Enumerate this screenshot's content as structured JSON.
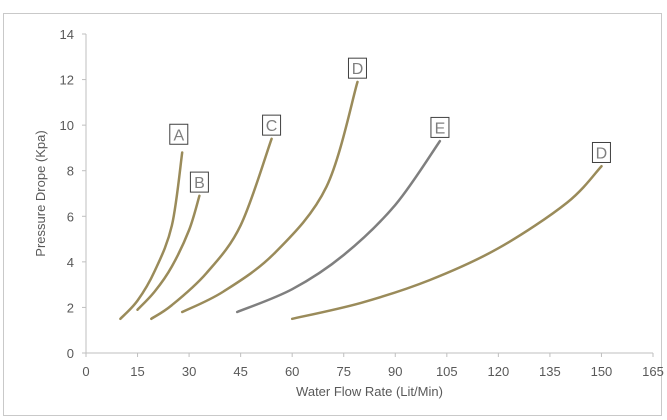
{
  "chart_data": {
    "type": "line",
    "title": "",
    "xlabel": "Water Flow Rate (Lit/Min)",
    "ylabel": "Pressure Drope (Kpa)",
    "xlim": [
      0,
      165
    ],
    "ylim": [
      0,
      14
    ],
    "x_ticks": [
      "0",
      "15",
      "30",
      "45",
      "60",
      "75",
      "90",
      "105",
      "120",
      "135",
      "150",
      "165"
    ],
    "y_ticks": [
      "0",
      "2",
      "4",
      "6",
      "8",
      "10",
      "12",
      "14"
    ],
    "grid": false,
    "legend": "none",
    "series": [
      {
        "name": "A",
        "color": "#9a8b5a",
        "points": [
          [
            10,
            1.5
          ],
          [
            15,
            2.3
          ],
          [
            20,
            3.6
          ],
          [
            25,
            5.6
          ],
          [
            28,
            8.8
          ]
        ],
        "label_at": [
          27,
          9.6
        ]
      },
      {
        "name": "B",
        "color": "#9a8b5a",
        "points": [
          [
            15,
            1.9
          ],
          [
            20,
            2.7
          ],
          [
            25,
            3.8
          ],
          [
            30,
            5.4
          ],
          [
            33,
            6.9
          ]
        ],
        "label_at": [
          33,
          7.5
        ]
      },
      {
        "name": "C",
        "color": "#9a8b5a",
        "points": [
          [
            19,
            1.5
          ],
          [
            25,
            2.1
          ],
          [
            35,
            3.5
          ],
          [
            45,
            5.6
          ],
          [
            54,
            9.4
          ]
        ],
        "label_at": [
          54,
          10.0
        ]
      },
      {
        "name": "D",
        "color": "#9a8b5a",
        "points": [
          [
            28,
            1.8
          ],
          [
            40,
            2.7
          ],
          [
            55,
            4.4
          ],
          [
            70,
            7.3
          ],
          [
            79,
            11.9
          ]
        ],
        "label_at": [
          79,
          12.5
        ]
      },
      {
        "name": "E",
        "color": "#7f7f7f",
        "points": [
          [
            44,
            1.8
          ],
          [
            60,
            2.8
          ],
          [
            75,
            4.3
          ],
          [
            90,
            6.5
          ],
          [
            103,
            9.3
          ]
        ],
        "label_at": [
          103,
          9.9
        ]
      },
      {
        "name": "D",
        "color": "#9a8b5a",
        "points": [
          [
            60,
            1.5
          ],
          [
            80,
            2.2
          ],
          [
            100,
            3.2
          ],
          [
            120,
            4.6
          ],
          [
            140,
            6.6
          ],
          [
            150,
            8.2
          ]
        ],
        "label_at": [
          150,
          8.8
        ]
      }
    ]
  }
}
